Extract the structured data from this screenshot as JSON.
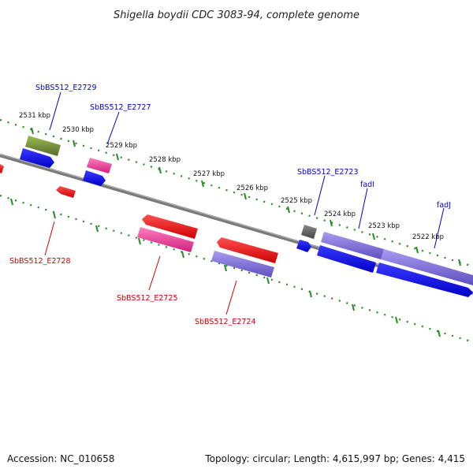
{
  "title": "Shigella boydii CDC 3083-94, complete genome",
  "footer": {
    "accession": "Accession: NC_010658",
    "topology": "Topology: circular; Length: 4,615,997 bp; Genes: 4,415"
  },
  "ruler_labels": [
    "2531 kbp",
    "2530 kbp",
    "2529 kbp",
    "2528 kbp",
    "2527 kbp",
    "2526 kbp",
    "2525 kbp",
    "2524 kbp",
    "2523 kbp",
    "2522 kbp"
  ],
  "gene_labels": {
    "e2729": "SbBS512_E2729",
    "e2727": "SbBS512_E2727",
    "e2723": "SbBS512_E2723",
    "fadI": "fadI",
    "fadJ": "fadJ",
    "e2728": "SbBS512_E2728",
    "e2725": "SbBS512_E2725",
    "e2724": "SbBS512_E2724"
  },
  "colors": {
    "forward_cds": "#0000ee",
    "reverse_cds": "#ee0000",
    "olive": "#6b8e23",
    "magenta": "#e0409a",
    "lavender": "#7b68d6",
    "grey": "#555555",
    "backbone": "#808080",
    "tick": "#228b22",
    "label_forward": "#0000cc",
    "label_reverse": "#cc0000"
  }
}
